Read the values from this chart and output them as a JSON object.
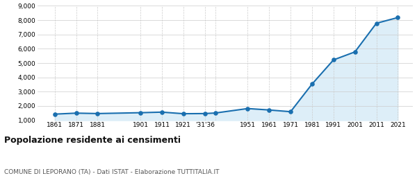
{
  "years": [
    1861,
    1871,
    1881,
    1901,
    1911,
    1921,
    1931,
    1936,
    1951,
    1961,
    1971,
    1981,
    1991,
    2001,
    2011,
    2021
  ],
  "population": [
    1430,
    1500,
    1470,
    1530,
    1570,
    1460,
    1470,
    1510,
    1820,
    1720,
    1600,
    3530,
    5220,
    5780,
    7780,
    8180
  ],
  "line_color": "#1a6faf",
  "fill_color": "#ddeef8",
  "marker_color": "#1a6faf",
  "bg_color": "#ffffff",
  "grid_color": "#cccccc",
  "title": "Popolazione residente ai censimenti",
  "subtitle": "COMUNE DI LEPORANO (TA) - Dati ISTAT - Elaborazione TUTTITALIA.IT",
  "ylim": [
    1000,
    9000
  ],
  "yticks": [
    1000,
    2000,
    3000,
    4000,
    5000,
    6000,
    7000,
    8000,
    9000
  ],
  "xlim": [
    1853,
    2028
  ],
  "title_fontsize": 9,
  "subtitle_fontsize": 6.5,
  "tick_fontsize": 6.5,
  "labels_map": {
    "1861": "1861",
    "1871": "1871",
    "1881": "1881",
    "1901": "1901",
    "1911": "1911",
    "1921": "1921",
    "1931": "'31'36",
    "1936": "",
    "1951": "1951",
    "1961": "1961",
    "1971": "1971",
    "1981": "1981",
    "1991": "1991",
    "2001": "2001",
    "2011": "2011",
    "2021": "2021"
  }
}
